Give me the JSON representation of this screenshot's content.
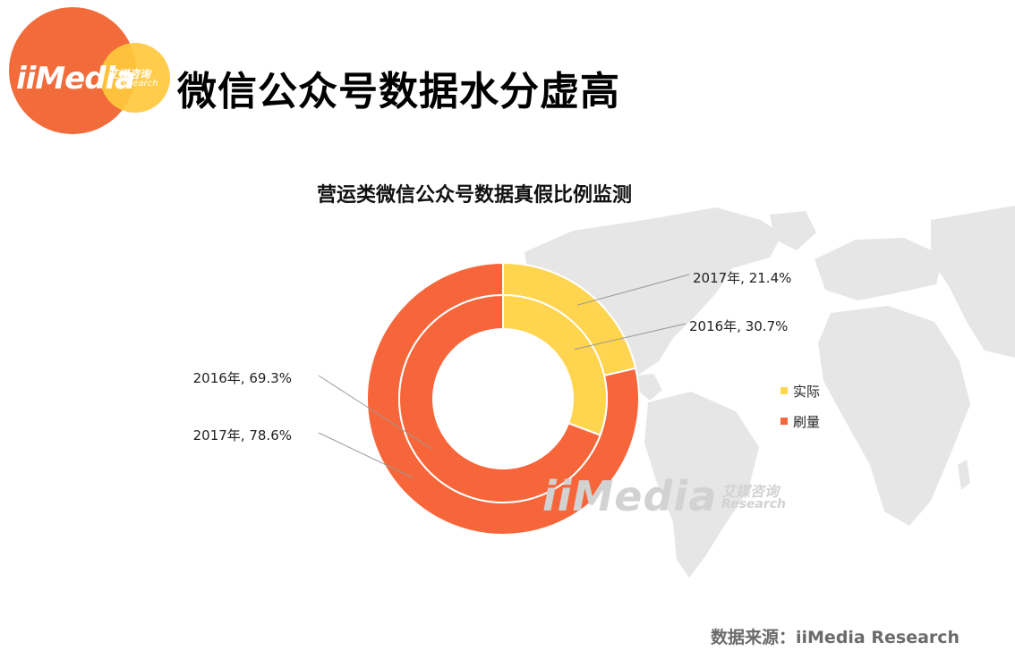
{
  "header": {
    "logo": {
      "text": "iiMedia",
      "cn": "艾媒咨询",
      "en": "Research"
    },
    "title": "微信公众号数据水分虚高"
  },
  "watermark": {
    "text": "iiMedia",
    "cn": "艾媒咨询",
    "en": "Research"
  },
  "source": "数据来源：iiMedia Research",
  "colors": {
    "actual": "#ffd44f",
    "fake": "#f7663a",
    "map": "#e6e6e6",
    "leader": "#9a9a9a"
  },
  "chart_data": {
    "type": "pie",
    "title": "营运类微信公众号数据真假比例监测",
    "categories": [
      "实际",
      "刷量"
    ],
    "series": [
      {
        "name": "2017年",
        "values": [
          21.4,
          78.6
        ]
      },
      {
        "name": "2016年",
        "values": [
          30.7,
          69.3
        ]
      }
    ],
    "labels": [
      "2017年, 21.4%",
      "2016年, 30.7%",
      "2016年, 69.3%",
      "2017年, 78.6%"
    ],
    "legend": {
      "placement": "right",
      "items": [
        "实际",
        "刷量"
      ]
    }
  }
}
